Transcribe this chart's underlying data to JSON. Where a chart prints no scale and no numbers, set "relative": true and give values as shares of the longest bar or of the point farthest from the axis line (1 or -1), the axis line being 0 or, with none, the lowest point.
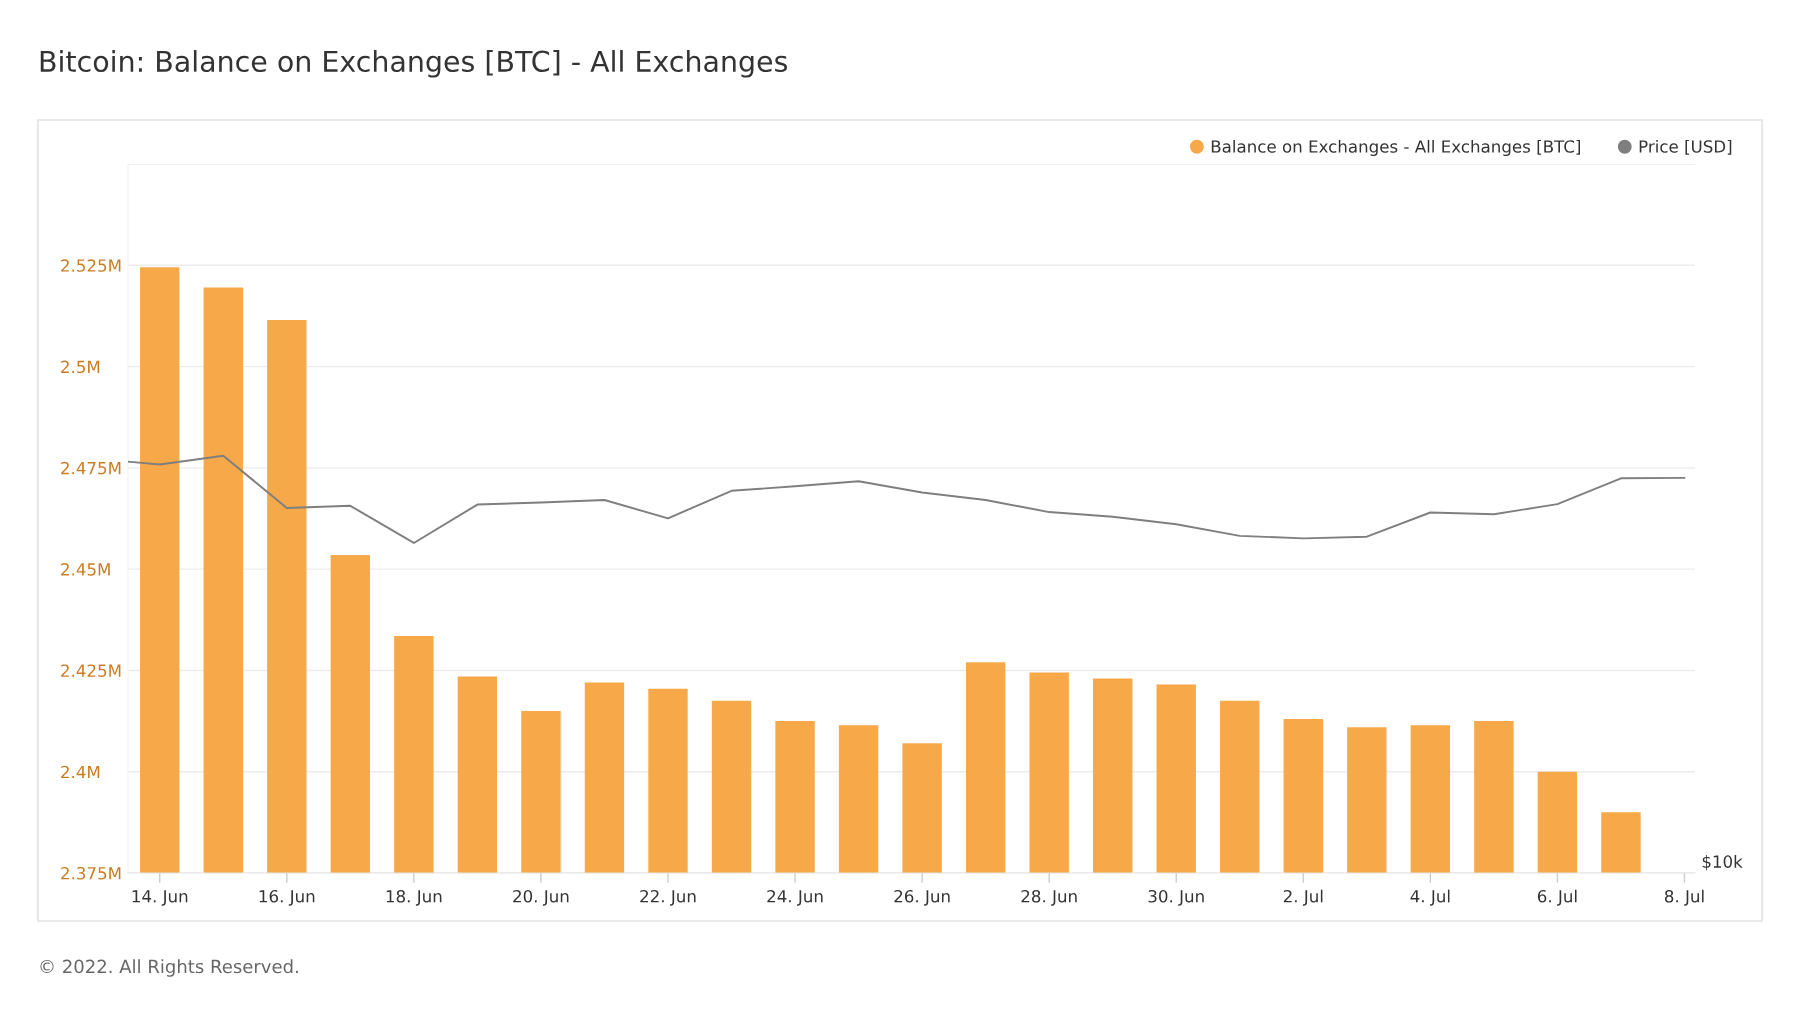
{
  "chart_data": [
    {
      "type": "bar",
      "title": "Bitcoin: Balance on Exchanges [BTC] - All Exchanges",
      "x": [
        "2022-06-14",
        "2022-06-15",
        "2022-06-16",
        "2022-06-17",
        "2022-06-18",
        "2022-06-19",
        "2022-06-20",
        "2022-06-21",
        "2022-06-22",
        "2022-06-23",
        "2022-06-24",
        "2022-06-25",
        "2022-06-26",
        "2022-06-27",
        "2022-06-28",
        "2022-06-29",
        "2022-06-30",
        "2022-07-01",
        "2022-07-02",
        "2022-07-03",
        "2022-07-04",
        "2022-07-05",
        "2022-07-06",
        "2022-07-07"
      ],
      "series": [
        {
          "name": "Balance on Exchanges - All Exchanges [BTC]",
          "color": "#f7a849",
          "values": [
            2524500,
            2519500,
            2511500,
            2453500,
            2433500,
            2423500,
            2415000,
            2422000,
            2420500,
            2417500,
            2412500,
            2411500,
            2407000,
            2427000,
            2424500,
            2423000,
            2421500,
            2417500,
            2413000,
            2411000,
            2411500,
            2412500,
            2400000,
            2390000
          ]
        }
      ],
      "xlim": [
        "2022-06-13T12:00",
        "2022-07-08T04:00"
      ],
      "xticks": [
        {
          "value": "2022-06-14",
          "label": "14. Jun"
        },
        {
          "value": "2022-06-16",
          "label": "16. Jun"
        },
        {
          "value": "2022-06-18",
          "label": "18. Jun"
        },
        {
          "value": "2022-06-20",
          "label": "20. Jun"
        },
        {
          "value": "2022-06-22",
          "label": "22. Jun"
        },
        {
          "value": "2022-06-24",
          "label": "24. Jun"
        },
        {
          "value": "2022-06-26",
          "label": "26. Jun"
        },
        {
          "value": "2022-06-28",
          "label": "28. Jun"
        },
        {
          "value": "2022-06-30",
          "label": "30. Jun"
        },
        {
          "value": "2022-07-02",
          "label": "2. Jul"
        },
        {
          "value": "2022-07-04",
          "label": "4. Jul"
        },
        {
          "value": "2022-07-06",
          "label": "6. Jul"
        },
        {
          "value": "2022-07-08",
          "label": "8. Jul"
        }
      ],
      "ylim": [
        2375000,
        2550000
      ],
      "yticks": [
        {
          "value": 2375000,
          "label": "2.375M"
        },
        {
          "value": 2400000,
          "label": "2.4M"
        },
        {
          "value": 2425000,
          "label": "2.425M"
        },
        {
          "value": 2450000,
          "label": "2.45M"
        },
        {
          "value": 2475000,
          "label": "2.475M"
        },
        {
          "value": 2500000,
          "label": "2.5M"
        },
        {
          "value": 2525000,
          "label": "2.525M"
        },
        {
          "value": 2550000,
          "label": null
        }
      ],
      "grid": "y",
      "legend": "top right",
      "annotations": [
        "© 2022. All Rights Reserved."
      ]
    },
    {
      "type": "line",
      "relative": true,
      "tick_labels": false,
      "legend": "top right",
      "x": [
        "2022-06-13T12:00",
        "2022-06-14",
        "2022-06-15",
        "2022-06-16",
        "2022-06-17",
        "2022-06-18",
        "2022-06-19",
        "2022-06-20",
        "2022-06-21",
        "2022-06-22",
        "2022-06-23",
        "2022-06-24",
        "2022-06-25",
        "2022-06-26",
        "2022-06-27",
        "2022-06-28",
        "2022-06-29",
        "2022-06-30",
        "2022-07-01",
        "2022-07-02",
        "2022-07-03",
        "2022-07-04",
        "2022-07-05",
        "2022-07-06",
        "2022-07-07",
        "2022-07-08"
      ],
      "series": [
        {
          "name": "Price [USD]",
          "color": "#7f7f7f",
          "axis": "y2",
          "values": [
            0.986,
            0.979,
            1,
            0.875,
            0.88,
            0.791,
            0.883,
            0.888,
            0.894,
            0.85,
            0.916,
            0.927,
            0.939,
            0.912,
            0.894,
            0.865,
            0.854,
            0.836,
            0.808,
            0.802,
            0.806,
            0.864,
            0.86,
            0.884,
            0.946,
            0.947
          ]
        }
      ],
      "xlim": [
        "2022-06-13T12:00",
        "2022-07-08T04:00"
      ],
      "annotations": [
        "$10k"
      ]
    }
  ]
}
